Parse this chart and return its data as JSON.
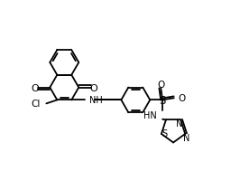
{
  "bg": "#ffffff",
  "lc": "#000000",
  "lw": 1.3,
  "fs": 7.0,
  "xlim": [
    0,
    10
  ],
  "ylim": [
    0.5,
    7.8
  ],
  "figsize": [
    2.66,
    2.01
  ],
  "dpi": 100
}
